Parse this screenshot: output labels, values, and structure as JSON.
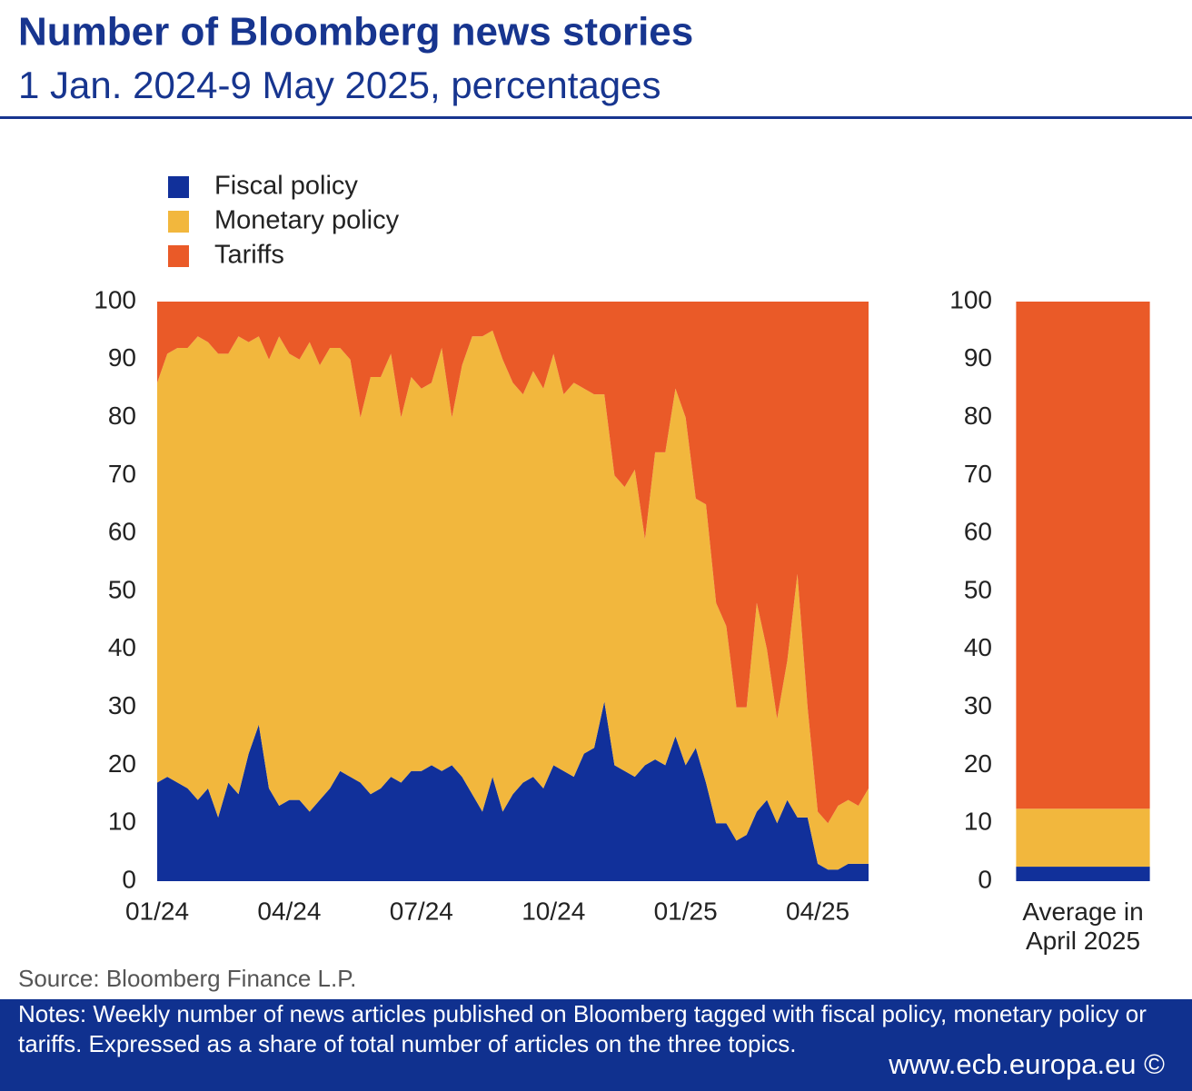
{
  "header": {
    "title": "Number of Bloomberg news stories",
    "subtitle": "1 Jan. 2024-9 May 2025, percentages"
  },
  "chart_data": [
    {
      "type": "stacked_area",
      "categories": [
        "01/24",
        null,
        null,
        null,
        null,
        null,
        null,
        null,
        null,
        null,
        null,
        null,
        null,
        "04/24",
        null,
        null,
        null,
        null,
        null,
        null,
        null,
        null,
        null,
        null,
        null,
        null,
        "07/24",
        null,
        null,
        null,
        null,
        null,
        null,
        null,
        null,
        null,
        null,
        null,
        null,
        "10/24",
        null,
        null,
        null,
        null,
        null,
        null,
        null,
        null,
        null,
        null,
        null,
        null,
        "01/25",
        null,
        null,
        null,
        null,
        null,
        null,
        null,
        null,
        null,
        null,
        null,
        null,
        "04/25",
        null,
        null,
        null,
        null,
        null
      ],
      "series": [
        {
          "name": "Fiscal policy",
          "color": "#11309a",
          "values": [
            17,
            18,
            17,
            16,
            14,
            16,
            11,
            17,
            15,
            22,
            27,
            16,
            13,
            14,
            14,
            12,
            14,
            16,
            19,
            18,
            17,
            15,
            16,
            18,
            17,
            19,
            19,
            20,
            19,
            20,
            18,
            15,
            12,
            18,
            12,
            15,
            17,
            18,
            16,
            20,
            19,
            18,
            22,
            23,
            31,
            20,
            19,
            18,
            20,
            21,
            20,
            25,
            20,
            23,
            17,
            10,
            10,
            7,
            8,
            12,
            14,
            10,
            14,
            11,
            11,
            3,
            2,
            2,
            3,
            3,
            3
          ]
        },
        {
          "name": "Monetary policy",
          "color": "#f2b73d",
          "values": [
            69,
            73,
            75,
            76,
            80,
            77,
            80,
            74,
            79,
            71,
            67,
            74,
            81,
            77,
            76,
            81,
            75,
            76,
            73,
            72,
            63,
            72,
            71,
            73,
            63,
            68,
            66,
            66,
            73,
            60,
            71,
            79,
            82,
            77,
            78,
            71,
            67,
            70,
            69,
            71,
            65,
            68,
            63,
            61,
            53,
            50,
            49,
            53,
            39,
            53,
            54,
            60,
            60,
            43,
            48,
            38,
            34,
            23,
            22,
            36,
            26,
            18,
            24,
            42,
            19,
            9,
            8,
            11,
            11,
            10,
            13
          ]
        },
        {
          "name": "Tariffs",
          "color": "#ea5a28",
          "values": [
            14,
            9,
            8,
            8,
            6,
            7,
            9,
            9,
            6,
            7,
            6,
            10,
            6,
            9,
            10,
            7,
            11,
            8,
            8,
            10,
            20,
            13,
            13,
            9,
            20,
            13,
            15,
            14,
            8,
            20,
            11,
            6,
            6,
            5,
            10,
            14,
            16,
            12,
            15,
            9,
            16,
            14,
            15,
            16,
            16,
            30,
            32,
            29,
            41,
            26,
            26,
            15,
            20,
            34,
            35,
            52,
            56,
            70,
            70,
            52,
            60,
            72,
            62,
            47,
            70,
            88,
            90,
            87,
            86,
            87,
            84
          ]
        }
      ],
      "ylim": [
        0,
        100
      ],
      "yticks": [
        0,
        10,
        20,
        30,
        40,
        50,
        60,
        70,
        80,
        90,
        100
      ],
      "grid": false,
      "legend": "top-left"
    },
    {
      "type": "stacked_bar",
      "categories": [
        "Average in April 2025"
      ],
      "series": [
        {
          "name": "Fiscal policy",
          "color": "#11309a",
          "values": [
            2.5
          ]
        },
        {
          "name": "Monetary policy",
          "color": "#f2b73d",
          "values": [
            10
          ]
        },
        {
          "name": "Tariffs",
          "color": "#ea5a28",
          "values": [
            87.5
          ]
        }
      ],
      "ylim": [
        0,
        100
      ],
      "yticks": [
        0,
        10,
        20,
        30,
        40,
        50,
        60,
        70,
        80,
        90,
        100
      ],
      "grid": false
    }
  ],
  "footer": {
    "source": "Source: Bloomberg Finance L.P.",
    "notes": "Notes: Weekly number of news articles published on Bloomberg tagged with fiscal policy, monetary policy or tariffs. Expressed as a share of total number of articles on the three topics.",
    "url": "www.ecb.europa.eu ©"
  }
}
